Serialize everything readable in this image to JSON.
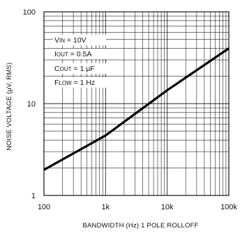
{
  "chart_data": {
    "type": "line",
    "title": "",
    "xlabel": "BANDWIDTH (Hz) 1 POLE ROLLOFF",
    "ylabel": "NOISE VOLTAGE (μV, RMS)",
    "x_scale": "log",
    "y_scale": "log",
    "xlim": [
      100,
      100000
    ],
    "ylim": [
      1,
      100
    ],
    "grid": true,
    "x_ticks": [
      {
        "value": 100,
        "label": "100"
      },
      {
        "value": 1000,
        "label": "1k"
      },
      {
        "value": 10000,
        "label": "10k"
      },
      {
        "value": 100000,
        "label": "100k"
      }
    ],
    "y_ticks": [
      {
        "value": 1,
        "label": "1"
      },
      {
        "value": 10,
        "label": "10"
      },
      {
        "value": 100,
        "label": "100"
      }
    ],
    "series": [
      {
        "points": [
          {
            "x": 100,
            "y": 1.9
          },
          {
            "x": 1000,
            "y": 4.5
          },
          {
            "x": 10000,
            "y": 14
          },
          {
            "x": 100000,
            "y": 40
          }
        ]
      }
    ],
    "annotations": [
      {
        "main": "V",
        "sub": "IN",
        "rest": " = 10V"
      },
      {
        "main": "I",
        "sub": "OUT",
        "rest": " = 0.5A"
      },
      {
        "main": "C",
        "sub": "OUT",
        "rest": " = 1 μF"
      },
      {
        "main": "F",
        "sub": "LOW",
        "rest": " = 1 Hz"
      }
    ]
  }
}
